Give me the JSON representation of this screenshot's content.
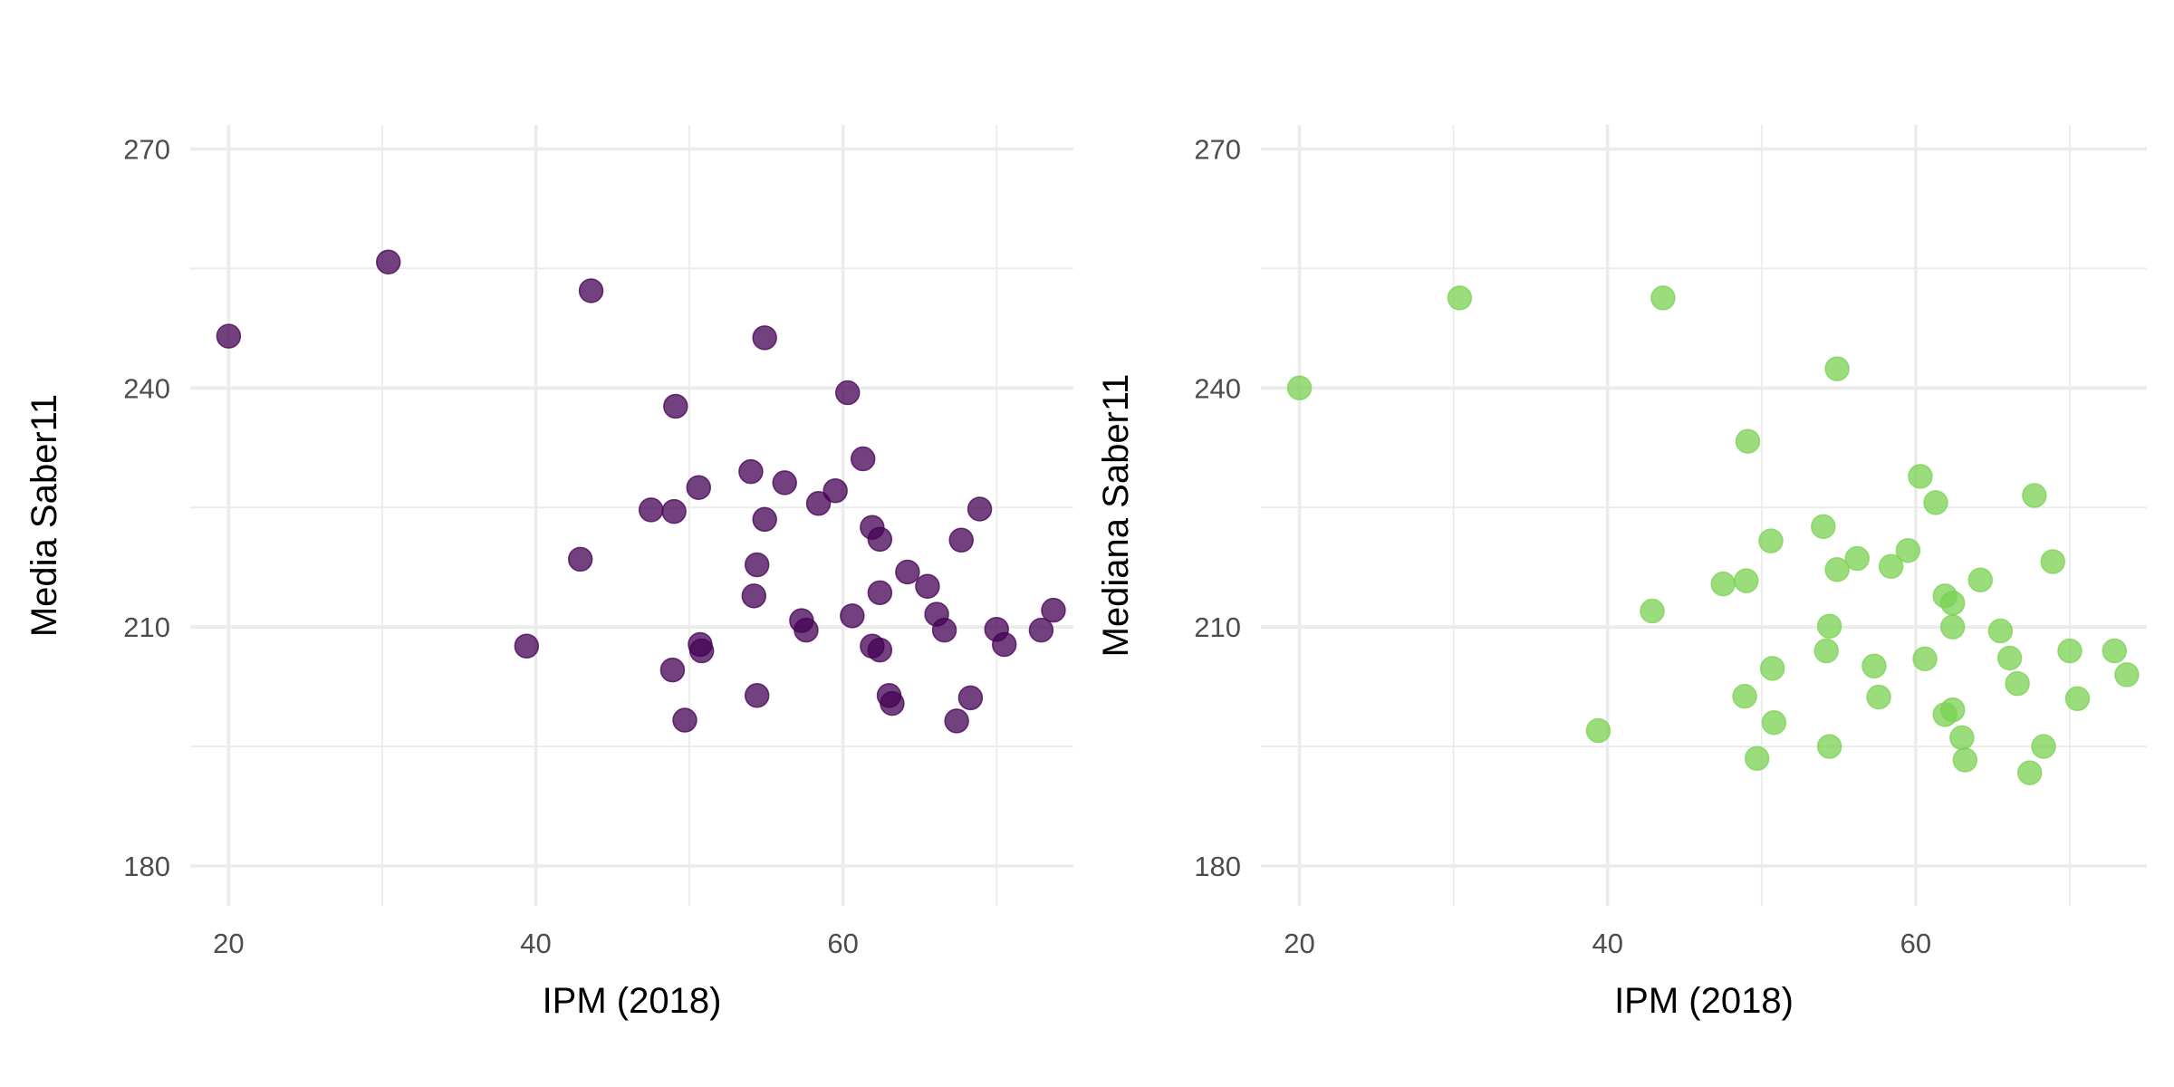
{
  "chart_data": [
    {
      "type": "scatter",
      "xlabel": "IPM (2018)",
      "ylabel": "Media Saber11",
      "xlim": [
        17.5,
        75
      ],
      "ylim": [
        175,
        273
      ],
      "x_ticks": [
        20,
        40,
        60
      ],
      "y_ticks": [
        180,
        210,
        240,
        270
      ],
      "grid": true,
      "point_color": "#440154",
      "point_opacity": 0.75,
      "x": [
        20.0,
        30.4,
        43.6,
        54.9,
        49.1,
        60.3,
        61.3,
        54.0,
        50.6,
        59.5,
        56.2,
        58.4,
        47.5,
        49.0,
        54.9,
        61.9,
        62.4,
        68.9,
        67.7,
        42.9,
        64.2,
        54.4,
        65.5,
        62.4,
        54.2,
        66.1,
        60.6,
        57.3,
        57.6,
        66.6,
        70.0,
        73.7,
        72.9,
        39.4,
        50.7,
        50.8,
        61.9,
        62.4,
        70.5,
        48.9,
        63.0,
        54.4,
        68.3,
        63.2,
        49.7,
        67.4
      ],
      "y": [
        246.5,
        255.8,
        252.2,
        246.3,
        237.7,
        239.4,
        231.1,
        229.5,
        227.5,
        227.1,
        228.1,
        225.5,
        224.7,
        224.5,
        223.5,
        222.5,
        221.0,
        224.8,
        220.9,
        218.5,
        216.9,
        217.8,
        215.1,
        214.3,
        213.9,
        211.6,
        211.4,
        210.8,
        209.6,
        209.6,
        209.7,
        212.1,
        209.6,
        207.6,
        207.8,
        207.0,
        207.6,
        207.1,
        207.8,
        204.6,
        201.4,
        201.4,
        201.1,
        200.4,
        198.3,
        198.2
      ]
    },
    {
      "type": "scatter",
      "xlabel": "IPM (2018)",
      "ylabel": "Mediana Saber11",
      "xlim": [
        17.5,
        75
      ],
      "ylim": [
        175,
        273
      ],
      "x_ticks": [
        20,
        40,
        60
      ],
      "y_ticks": [
        180,
        210,
        240,
        270
      ],
      "grid": true,
      "point_color": "#7AD151",
      "point_opacity": 0.75,
      "x": [
        20.0,
        30.4,
        43.6,
        54.9,
        49.1,
        60.3,
        61.3,
        54.0,
        50.6,
        59.5,
        56.2,
        58.4,
        47.5,
        49.0,
        54.9,
        61.9,
        62.4,
        68.9,
        67.7,
        42.9,
        64.2,
        54.4,
        65.5,
        62.4,
        54.2,
        66.1,
        60.6,
        57.3,
        57.6,
        66.6,
        70.0,
        73.7,
        72.9,
        39.4,
        50.7,
        50.8,
        61.9,
        62.4,
        70.5,
        48.9,
        63.0,
        54.4,
        68.3,
        63.2,
        49.7,
        67.4
      ],
      "y": [
        240.0,
        251.3,
        251.3,
        242.4,
        233.3,
        228.9,
        225.6,
        222.6,
        220.8,
        219.6,
        218.6,
        217.6,
        215.4,
        215.8,
        217.2,
        213.9,
        213.0,
        218.2,
        226.5,
        212.0,
        215.9,
        210.1,
        209.5,
        210.0,
        207.0,
        206.1,
        206.0,
        205.1,
        201.2,
        202.9,
        207.0,
        204.0,
        207.0,
        197.0,
        204.8,
        198.0,
        199.0,
        199.6,
        201.0,
        201.3,
        196.1,
        195.0,
        195.0,
        193.3,
        193.5,
        191.7
      ]
    }
  ]
}
